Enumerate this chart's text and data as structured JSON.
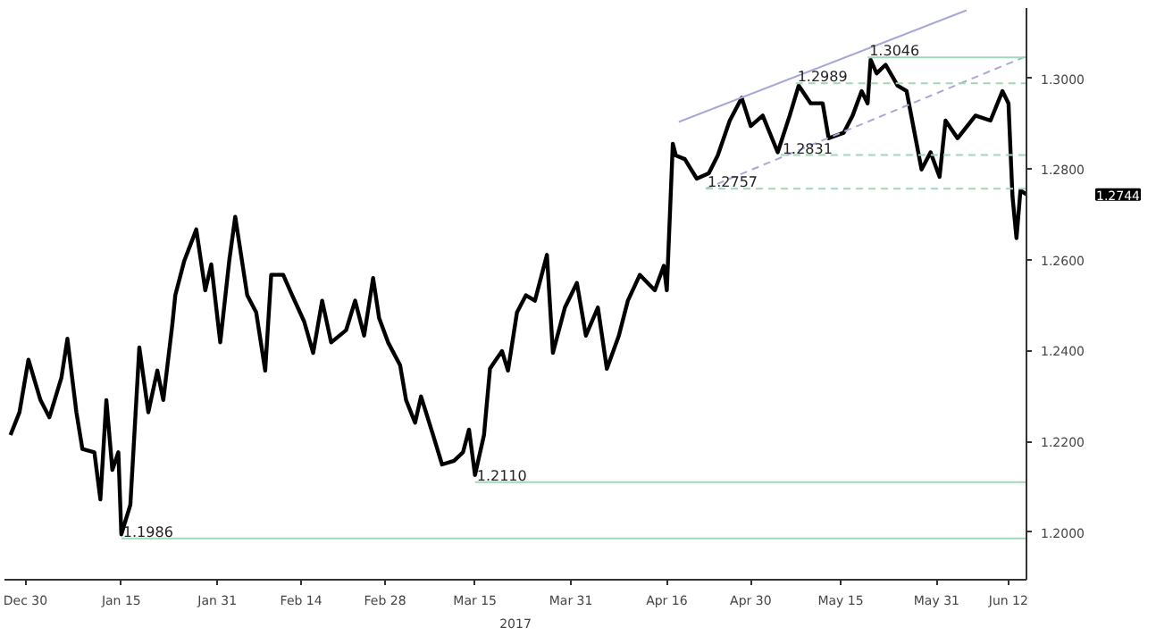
{
  "chart_data": {
    "type": "line",
    "xlabel": "2017",
    "grid": false,
    "xlim": [
      "2016-12-26T12:00",
      "2017-06-15"
    ],
    "xticks": [
      {
        "value": "2016-12-30",
        "label": "Dec 30"
      },
      {
        "value": "2017-01-15",
        "label": "Jan 15"
      },
      {
        "value": "2017-01-31",
        "label": "Jan 31"
      },
      {
        "value": "2017-02-14",
        "label": "Feb 14"
      },
      {
        "value": "2017-02-28",
        "label": "Feb 28"
      },
      {
        "value": "2017-03-15",
        "label": "Mar 15"
      },
      {
        "value": "2017-03-31",
        "label": "Mar 31"
      },
      {
        "value": "2017-04-16",
        "label": "Apr 16"
      },
      {
        "value": "2017-04-30",
        "label": "Apr 30"
      },
      {
        "value": "2017-05-15",
        "label": "May 15"
      },
      {
        "value": "2017-05-31",
        "label": "May 31"
      },
      {
        "value": "2017-06-12",
        "label": "Jun 12"
      }
    ],
    "ylim": [
      1.1895,
      1.3155
    ],
    "yticks": [
      {
        "value": 1.2,
        "label": "1.2000"
      },
      {
        "value": 1.22,
        "label": "1.2200"
      },
      {
        "value": 1.24,
        "label": "1.2400"
      },
      {
        "value": 1.26,
        "label": "1.2600"
      },
      {
        "value": 1.28,
        "label": "1.2800"
      },
      {
        "value": 1.3,
        "label": "1.3000"
      }
    ],
    "series": [
      {
        "color": "#000000",
        "x": [
          "2016-12-27T12:00",
          "2016-12-29",
          "2016-12-30T12:00",
          "2017-01-01T12:00",
          "2017-01-03",
          "2017-01-05",
          "2017-01-06",
          "2017-01-07T12:00",
          "2017-01-08T12:00",
          "2017-01-10T12:00",
          "2017-01-11T12:00",
          "2017-01-12T12:00",
          "2017-01-13T12:00",
          "2017-01-14T12:00",
          "2017-01-15",
          "2017-01-16T12:00",
          "2017-01-18",
          "2017-01-19T12:00",
          "2017-01-21",
          "2017-01-22",
          "2017-01-23T12:00",
          "2017-01-24",
          "2017-01-25T12:00",
          "2017-01-27T12:00",
          "2017-01-29",
          "2017-01-30",
          "2017-01-31T12:00",
          "2017-02-02",
          "2017-02-03",
          "2017-02-05",
          "2017-02-06T12:00",
          "2017-02-08",
          "2017-02-09",
          "2017-02-11",
          "2017-02-12T12:00",
          "2017-02-14T12:00",
          "2017-02-16",
          "2017-02-17T12:00",
          "2017-02-19",
          "2017-02-21T12:00",
          "2017-02-23",
          "2017-02-24T12:00",
          "2017-02-26",
          "2017-02-27",
          "2017-02-28T12:00",
          "2017-03-02T12:00",
          "2017-03-03T12:00",
          "2017-03-05",
          "2017-03-06",
          "2017-03-08",
          "2017-03-09T12:00",
          "2017-03-11T12:00",
          "2017-03-13",
          "2017-03-14",
          "2017-03-15",
          "2017-03-16T12:00",
          "2017-03-17T12:00",
          "2017-03-18T12:00",
          "2017-03-19T12:00",
          "2017-03-20T12:00",
          "2017-03-22",
          "2017-03-23T12:00",
          "2017-03-25",
          "2017-03-27",
          "2017-03-28",
          "2017-03-30",
          "2017-04-01",
          "2017-04-02T12:00",
          "2017-04-04T12:00",
          "2017-04-06",
          "2017-04-08",
          "2017-04-09T12:00",
          "2017-04-11T12:00",
          "2017-04-14",
          "2017-04-15T12:00",
          "2017-04-16",
          "2017-04-17",
          "2017-04-17T12:00",
          "2017-04-19",
          "2017-04-21",
          "2017-04-23",
          "2017-04-24T12:00",
          "2017-04-26T12:00",
          "2017-04-28T12:00",
          "2017-04-30",
          "2017-05-02",
          "2017-05-04T12:00",
          "2017-05-06T12:00",
          "2017-05-08",
          "2017-05-10",
          "2017-05-12",
          "2017-05-13",
          "2017-05-15T12:00",
          "2017-05-17",
          "2017-05-18T12:00",
          "2017-05-19T12:00",
          "2017-05-20",
          "2017-05-21",
          "2017-05-22T12:00",
          "2017-05-24T12:00",
          "2017-05-26",
          "2017-05-27T12:00",
          "2017-05-28T12:00",
          "2017-05-30",
          "2017-05-31T12:00",
          "2017-06-01T12:00",
          "2017-06-03T12:00",
          "2017-06-06T12:00",
          "2017-06-09",
          "2017-06-11",
          "2017-06-12",
          "2017-06-12T16:00",
          "2017-06-13T08:00",
          "2017-06-14",
          "2017-06-15"
        ],
        "values": [
          1.2214,
          1.2264,
          1.238,
          1.2291,
          1.2253,
          1.234,
          1.2426,
          1.2264,
          1.2183,
          1.2176,
          1.2072,
          1.2291,
          1.2137,
          1.2176,
          1.1995,
          1.206,
          1.2407,
          1.2264,
          1.2356,
          1.2291,
          1.2457,
          1.2522,
          1.2598,
          1.2667,
          1.2533,
          1.259,
          1.2418,
          1.2598,
          1.2695,
          1.2522,
          1.2484,
          1.2356,
          1.2567,
          1.2567,
          1.2522,
          1.2464,
          1.2395,
          1.251,
          1.2418,
          1.2445,
          1.251,
          1.2433,
          1.256,
          1.2472,
          1.2418,
          1.2368,
          1.2291,
          1.2241,
          1.2299,
          1.2214,
          1.2149,
          1.2157,
          1.2176,
          1.2226,
          1.2126,
          1.2214,
          1.236,
          1.238,
          1.2399,
          1.2356,
          1.2484,
          1.2522,
          1.251,
          1.2611,
          1.2395,
          1.2495,
          1.2549,
          1.2433,
          1.2495,
          1.236,
          1.2433,
          1.251,
          1.2567,
          1.2533,
          1.2587,
          1.2533,
          1.2856,
          1.283,
          1.2822,
          1.2779,
          1.2791,
          1.283,
          1.2907,
          1.2957,
          1.2895,
          1.2918,
          1.2837,
          1.2918,
          1.2984,
          1.2945,
          1.2945,
          1.2868,
          1.288,
          1.2918,
          1.2972,
          1.2945,
          1.3041,
          1.3011,
          1.303,
          1.2984,
          1.2972,
          1.2868,
          1.2799,
          1.2837,
          1.2783,
          1.2907,
          1.2868,
          1.2918,
          1.2907,
          1.2972,
          1.2945,
          1.274,
          1.2648,
          1.2753,
          1.2744
        ]
      },
      {
        "type": "line",
        "color": "#a8a8d8",
        "x": [
          "2017-04-18",
          "2017-06-05"
        ],
        "values": [
          1.2904,
          1.315
        ]
      },
      {
        "type": "line",
        "color": "#a8a8d8",
        "line_style": "dashed",
        "x": [
          "2017-04-22T12:00",
          "2017-06-15"
        ],
        "values": [
          1.2757,
          1.3049
        ]
      },
      {
        "type": "line",
        "color": "#9fd8b8",
        "x": [
          "2017-05-19T12:00",
          "2017-06-15"
        ],
        "values": [
          1.3046,
          1.3046
        ]
      },
      {
        "type": "line",
        "color": "#9fd8b8",
        "line_style": "dashed",
        "x": [
          "2017-05-07T12:00",
          "2017-06-15"
        ],
        "values": [
          1.2989,
          1.2989
        ]
      },
      {
        "type": "line",
        "color": "#9fd8b8",
        "line_style": "dashed",
        "x": [
          "2017-05-05",
          "2017-06-15"
        ],
        "values": [
          1.2831,
          1.2831
        ]
      },
      {
        "type": "line",
        "color": "#9fd8b8",
        "line_style": "dashed",
        "x": [
          "2017-04-22T12:00",
          "2017-06-15"
        ],
        "values": [
          1.2757,
          1.2757
        ]
      },
      {
        "type": "line",
        "color": "#9fd8b8",
        "x": [
          "2017-03-15",
          "2017-06-15"
        ],
        "values": [
          1.211,
          1.211
        ]
      },
      {
        "type": "line",
        "color": "#9fd8b8",
        "x": [
          "2017-01-15",
          "2017-06-15"
        ],
        "values": [
          1.1986,
          1.1986
        ]
      }
    ],
    "annotations": [
      {
        "text": "1.3046",
        "x": "2017-05-19T12:00",
        "y": 1.3046
      },
      {
        "text": "1.2989",
        "x": "2017-05-07T12:00",
        "y": 1.2989
      },
      {
        "text": "1.2831",
        "x": "2017-05-05",
        "y": 1.2831
      },
      {
        "text": "1.2757",
        "x": "2017-04-22T12:00",
        "y": 1.2757
      },
      {
        "text": "1.2110",
        "x": "2017-03-15",
        "y": 1.211
      },
      {
        "text": "1.1986",
        "x": "2017-01-15",
        "y": 1.1986
      },
      "1.2744"
    ]
  }
}
